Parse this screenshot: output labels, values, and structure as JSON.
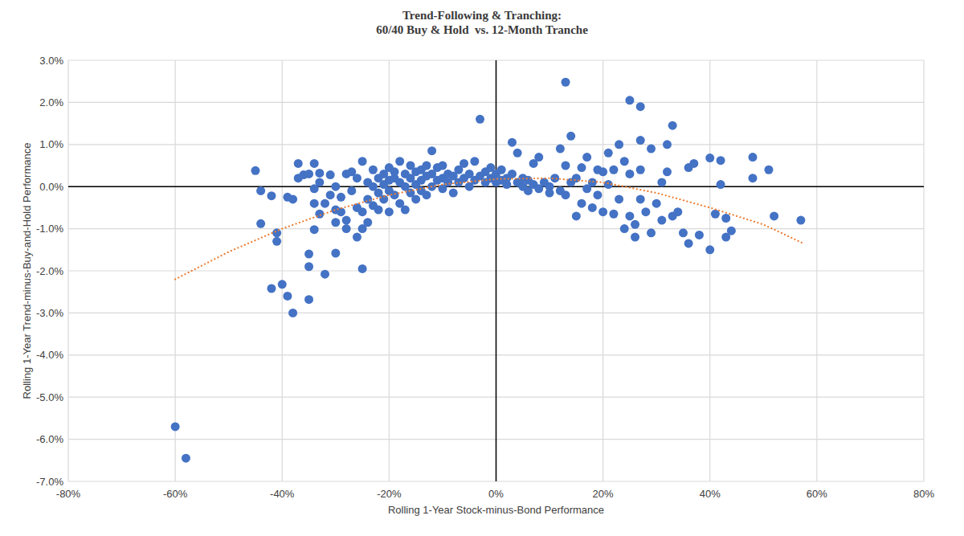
{
  "chart_data": {
    "type": "scatter",
    "title": "Trend-Following & Tranching:",
    "subtitle": "60/40 Buy & Hold  vs. 12-Month Tranche",
    "x_label": "Rolling 1-Year Stock-minus-Bond Performance",
    "y_label": "Rolling 1-Year Trend-minus-Buy-and-Hold Performance",
    "xlim": [
      -80,
      80
    ],
    "ylim": [
      -7,
      3
    ],
    "xticks": [
      {
        "value": -80,
        "label": "-80%"
      },
      {
        "value": -60,
        "label": "-60%"
      },
      {
        "value": -40,
        "label": "-40%"
      },
      {
        "value": -20,
        "label": "-20%"
      },
      {
        "value": 0,
        "label": "0%"
      },
      {
        "value": 20,
        "label": "20%"
      },
      {
        "value": 40,
        "label": "40%"
      },
      {
        "value": 60,
        "label": "60%"
      },
      {
        "value": 80,
        "label": "80%"
      }
    ],
    "yticks": [
      {
        "value": -7,
        "label": "-7.0%"
      },
      {
        "value": -6,
        "label": "-6.0%"
      },
      {
        "value": -5,
        "label": "-5.0%"
      },
      {
        "value": -4,
        "label": "-4.0%"
      },
      {
        "value": -3,
        "label": "-3.0%"
      },
      {
        "value": -2,
        "label": "-2.0%"
      },
      {
        "value": -1,
        "label": "-1.0%"
      },
      {
        "value": 0,
        "label": "0.0%"
      },
      {
        "value": 1,
        "label": "1.0%"
      },
      {
        "value": 2,
        "label": "2.0%"
      },
      {
        "value": 3,
        "label": "3.0%"
      }
    ],
    "grid": true,
    "series": [
      {
        "type": "scatter",
        "color": "#4472c4",
        "marker": "circle",
        "x": [
          -60,
          -58,
          -45,
          -44,
          -44,
          -42,
          -42,
          -41,
          -41,
          -40,
          -39,
          -39,
          -38,
          -38,
          -37,
          -37,
          -36,
          -35,
          -35,
          -35,
          -35,
          -34,
          -34,
          -34,
          -34,
          -33,
          -33,
          -33,
          -32,
          -32,
          -31,
          -31,
          -30,
          -30,
          -30,
          -30,
          -29,
          -29,
          -28,
          -28,
          -28,
          -27,
          -27,
          -26,
          -26,
          -26,
          -25,
          -25,
          -25,
          -25,
          -24,
          -24,
          -24,
          -23,
          -23,
          -23,
          -22,
          -22,
          -22,
          -21,
          -21,
          -21,
          -20,
          -20,
          -20,
          -20,
          -19,
          -19,
          -19,
          -18,
          -18,
          -18,
          -17,
          -17,
          -17,
          -16,
          -16,
          -16,
          -15,
          -15,
          -15,
          -14,
          -14,
          -14,
          -13,
          -13,
          -13,
          -12,
          -12,
          -12,
          -11,
          -11,
          -10,
          -10,
          -10,
          -9,
          -9,
          -8,
          -8,
          -7,
          -7,
          -6,
          -6,
          -5,
          -5,
          -4,
          -4,
          -3,
          -3,
          -2,
          -2,
          -1,
          -1,
          0,
          0,
          1,
          1,
          2,
          2,
          3,
          3,
          4,
          4,
          5,
          5,
          6,
          6,
          7,
          7,
          8,
          8,
          9,
          10,
          10,
          11,
          12,
          12,
          13,
          13,
          13,
          14,
          14,
          15,
          15,
          16,
          16,
          17,
          17,
          18,
          18,
          19,
          19,
          20,
          20,
          21,
          21,
          22,
          22,
          23,
          23,
          24,
          24,
          25,
          25,
          25,
          26,
          26,
          27,
          27,
          27,
          27,
          28,
          29,
          29,
          30,
          31,
          31,
          32,
          32,
          33,
          33,
          34,
          35,
          36,
          36,
          37,
          38,
          40,
          40,
          41,
          42,
          42,
          43,
          43,
          44,
          48,
          48,
          51,
          52,
          57
        ],
        "values": [
          -5.7,
          -6.45,
          0.38,
          -0.1,
          -0.88,
          -2.42,
          -0.22,
          -1.1,
          -1.3,
          -2.32,
          -0.25,
          -2.6,
          -3.0,
          -0.3,
          0.2,
          0.55,
          0.28,
          -1.6,
          -1.9,
          -2.68,
          0.3,
          0.55,
          -1.02,
          -0.05,
          -0.4,
          -0.65,
          0.32,
          0.1,
          -0.4,
          -2.08,
          0.28,
          -0.2,
          -0.85,
          -1.58,
          -0.55,
          0.0,
          -0.6,
          -0.25,
          0.3,
          -1.0,
          -0.8,
          -0.1,
          0.35,
          -1.2,
          -0.5,
          0.2,
          -1.95,
          -1.0,
          -0.6,
          0.6,
          0.1,
          -0.3,
          -0.85,
          0.4,
          -0.45,
          0.0,
          0.2,
          -0.15,
          -0.55,
          0.3,
          0.05,
          -0.3,
          0.45,
          0.15,
          -0.1,
          -0.6,
          0.2,
          -0.2,
          0.35,
          0.6,
          0.1,
          -0.4,
          0.3,
          0.0,
          -0.55,
          0.5,
          0.2,
          -0.15,
          0.35,
          0.05,
          -0.3,
          0.4,
          0.15,
          -0.1,
          0.25,
          0.5,
          -0.2,
          0.85,
          0.3,
          0.0,
          0.45,
          0.15,
          0.2,
          -0.05,
          0.5,
          0.3,
          0.1,
          0.25,
          -0.15,
          0.4,
          0.1,
          0.2,
          0.55,
          0.3,
          0.0,
          0.6,
          0.15,
          1.6,
          0.25,
          0.35,
          0.1,
          0.2,
          0.45,
          0.3,
          0.1,
          0.4,
          0.15,
          0.2,
          0.05,
          1.05,
          0.3,
          0.8,
          0.1,
          0.0,
          0.2,
          -0.1,
          0.15,
          0.55,
          0.05,
          0.7,
          -0.05,
          0.1,
          0.0,
          -0.15,
          0.2,
          0.9,
          -0.1,
          2.48,
          0.5,
          -0.2,
          1.2,
          0.1,
          -0.7,
          0.2,
          0.45,
          -0.4,
          0.7,
          -0.05,
          0.1,
          -0.5,
          0.4,
          -0.2,
          0.35,
          -0.6,
          0.8,
          0.05,
          -0.65,
          0.4,
          1.0,
          -0.3,
          -1.0,
          0.6,
          2.05,
          -0.7,
          0.3,
          -0.9,
          -1.2,
          1.9,
          1.1,
          -0.3,
          0.4,
          -0.6,
          0.9,
          -1.1,
          -0.4,
          -0.8,
          0.1,
          1.0,
          0.35,
          -0.7,
          1.45,
          -0.6,
          -1.1,
          0.45,
          -1.35,
          0.55,
          -1.15,
          0.68,
          -1.5,
          -0.65,
          0.62,
          0.05,
          -0.75,
          -1.2,
          -1.05,
          0.7,
          0.2,
          0.4,
          -0.7,
          -0.8
        ]
      },
      {
        "type": "line",
        "color": "#ed7d31",
        "line_style": "dotted",
        "x": [
          -60,
          -50,
          -40,
          -30,
          -20,
          -10,
          0,
          10,
          20,
          30,
          40,
          50,
          57.5
        ],
        "values": [
          -2.2,
          -1.55,
          -1.0,
          -0.55,
          -0.2,
          0.05,
          0.18,
          0.2,
          0.1,
          -0.15,
          -0.5,
          -0.9,
          -1.35
        ]
      }
    ]
  }
}
